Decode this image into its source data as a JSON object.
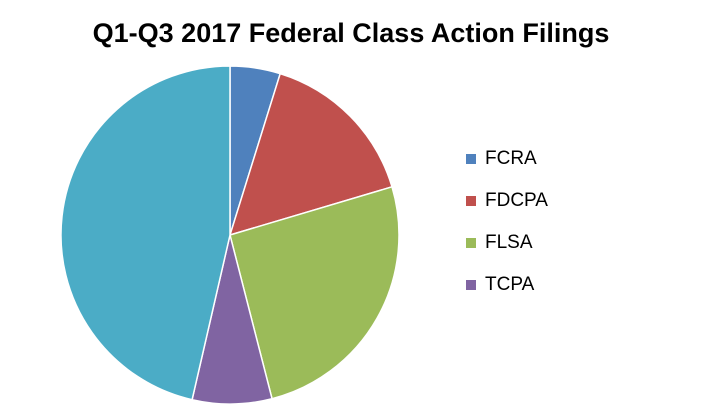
{
  "chart_data": {
    "type": "pie",
    "title": "Q1-Q3 2017 Federal Class Action Filings",
    "categories": [
      "FCRA",
      "FDCPA",
      "FLSA",
      "TCPA",
      ""
    ],
    "values": [
      4.8,
      15.6,
      25.6,
      7.6,
      46.4
    ],
    "colors": [
      "#4F81BD",
      "#C0504D",
      "#9BBB59",
      "#8064A2",
      "#4BACC6"
    ],
    "legend": {
      "position": "right",
      "entries": [
        "FCRA",
        "FDCPA",
        "FLSA",
        "TCPA"
      ]
    },
    "start_angle": "12 o'clock",
    "direction": "clockwise"
  }
}
